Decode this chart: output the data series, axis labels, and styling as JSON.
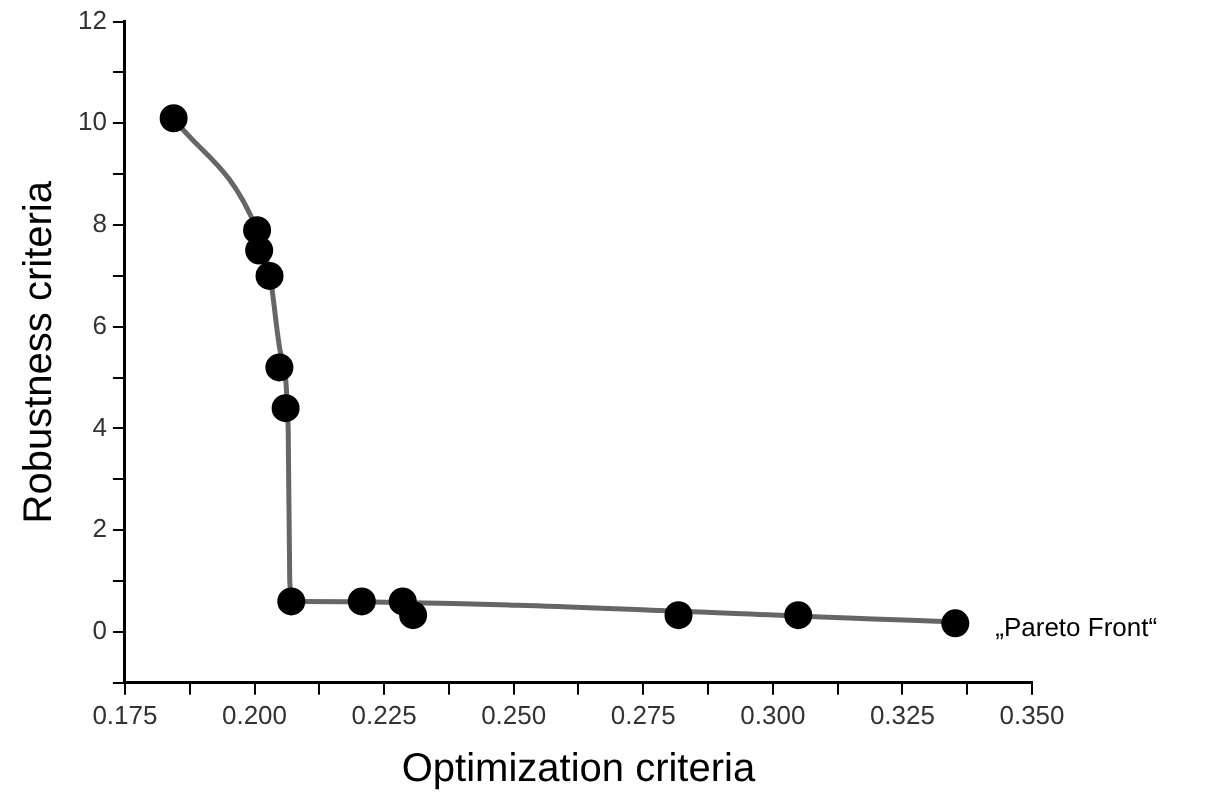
{
  "chart_data": {
    "type": "scatter",
    "xlabel": "Optimization criteria",
    "ylabel": "Robustness criteria",
    "xlim": [
      0.175,
      0.35
    ],
    "ylim": [
      -1,
      12
    ],
    "xticks": [
      0.175,
      {
        "value": 0.1875,
        "label": null
      },
      {
        "value": 0.2,
        "label": "0.200"
      },
      {
        "value": 0.2125,
        "label": null
      },
      0.225,
      {
        "value": 0.2375,
        "label": null
      },
      {
        "value": 0.25,
        "label": "0.250"
      },
      {
        "value": 0.2625,
        "label": null
      },
      0.275,
      {
        "value": 0.2875,
        "label": null
      },
      {
        "value": 0.3,
        "label": "0.300"
      },
      {
        "value": 0.3125,
        "label": null
      },
      0.325,
      {
        "value": 0.3375,
        "label": null
      },
      {
        "value": 0.35,
        "label": "0.350"
      }
    ],
    "yticks": [
      {
        "value": -1,
        "label": null
      },
      0,
      {
        "value": 1,
        "label": null
      },
      2,
      {
        "value": 3,
        "label": null
      },
      4,
      {
        "value": 5,
        "label": null
      },
      6,
      {
        "value": 7,
        "label": null
      },
      8,
      {
        "value": 9,
        "label": null
      },
      10,
      {
        "value": 11,
        "label": null
      },
      12
    ],
    "grid": false,
    "legend": false,
    "series": [
      {
        "type": "line",
        "color": "#666666",
        "marker": "none",
        "line_style": "solid",
        "x": [
          0.1844,
          0.2005,
          0.203,
          0.205,
          0.2065,
          0.2068,
          0.2075,
          0.2085,
          0.335
        ],
        "values": [
          10.1,
          7.9,
          7.0,
          5.5,
          4.0,
          1.0,
          0.55,
          0.6,
          0.2
        ]
      },
      {
        "color": "#000000",
        "marker": "circle",
        "x": [
          0.1844,
          0.2005,
          0.2009,
          0.2029,
          0.2048,
          0.206,
          0.2071,
          0.2207,
          0.2286,
          0.2306,
          0.2818,
          0.3049,
          0.3352
        ],
        "values": [
          10.1,
          7.9,
          7.5,
          7.0,
          5.2,
          4.4,
          0.6,
          0.6,
          0.6,
          0.33,
          0.33,
          0.33,
          0.17
        ]
      }
    ],
    "annotations": [
      {
        "text": "„Pareto Front“",
        "x": 0.3352,
        "y": 0.17
      }
    ]
  }
}
